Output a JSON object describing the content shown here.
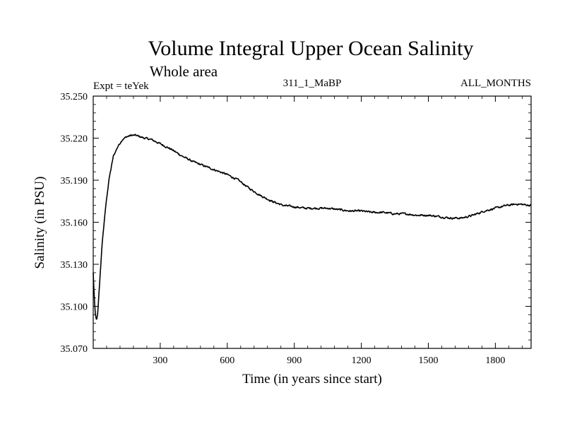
{
  "chart_data": {
    "type": "line",
    "title": "Volume Integral Upper Ocean Salinity",
    "subtitle": "Whole area",
    "experiment_label": "Expt = teYek",
    "run_label": "311_1_MaBP",
    "period_label": "ALL_MONTHS",
    "xlabel": "Time (in years since start)",
    "ylabel": "Salinity (in PSU)",
    "xlim": [
      0,
      1960
    ],
    "ylim": [
      35.07,
      35.25
    ],
    "x_ticks": [
      300,
      600,
      900,
      1200,
      1500,
      1800
    ],
    "x_tick_labels": [
      "300",
      "600",
      "900",
      "1200",
      "1500",
      "1800"
    ],
    "y_ticks": [
      35.07,
      35.1,
      35.13,
      35.16,
      35.19,
      35.22,
      35.25
    ],
    "y_tick_labels": [
      "35.070",
      "35.100",
      "35.130",
      "35.160",
      "35.190",
      "35.220",
      "35.250"
    ],
    "noise_amplitude": 0.0012,
    "series": [
      {
        "name": "Salinity",
        "x": [
          0,
          5,
          10,
          15,
          20,
          30,
          40,
          55,
          70,
          90,
          110,
          130,
          150,
          170,
          190,
          210,
          230,
          260,
          300,
          350,
          400,
          450,
          500,
          550,
          600,
          650,
          700,
          750,
          800,
          850,
          900,
          950,
          1000,
          1050,
          1100,
          1150,
          1200,
          1250,
          1300,
          1350,
          1400,
          1450,
          1500,
          1550,
          1600,
          1650,
          1700,
          1750,
          1800,
          1850,
          1900,
          1960
        ],
        "values": [
          35.124,
          35.105,
          35.094,
          35.09,
          35.095,
          35.12,
          35.145,
          35.17,
          35.19,
          35.207,
          35.214,
          35.219,
          35.221,
          35.222,
          35.222,
          35.221,
          35.22,
          35.219,
          35.216,
          35.212,
          35.207,
          35.203,
          35.2,
          35.197,
          35.194,
          35.19,
          35.184,
          35.179,
          35.175,
          35.172,
          35.171,
          35.17,
          35.17,
          35.17,
          35.169,
          35.168,
          35.168,
          35.167,
          35.167,
          35.166,
          35.166,
          35.165,
          35.165,
          35.164,
          35.163,
          35.163,
          35.165,
          35.168,
          35.17,
          35.172,
          35.173,
          35.172
        ]
      }
    ]
  }
}
